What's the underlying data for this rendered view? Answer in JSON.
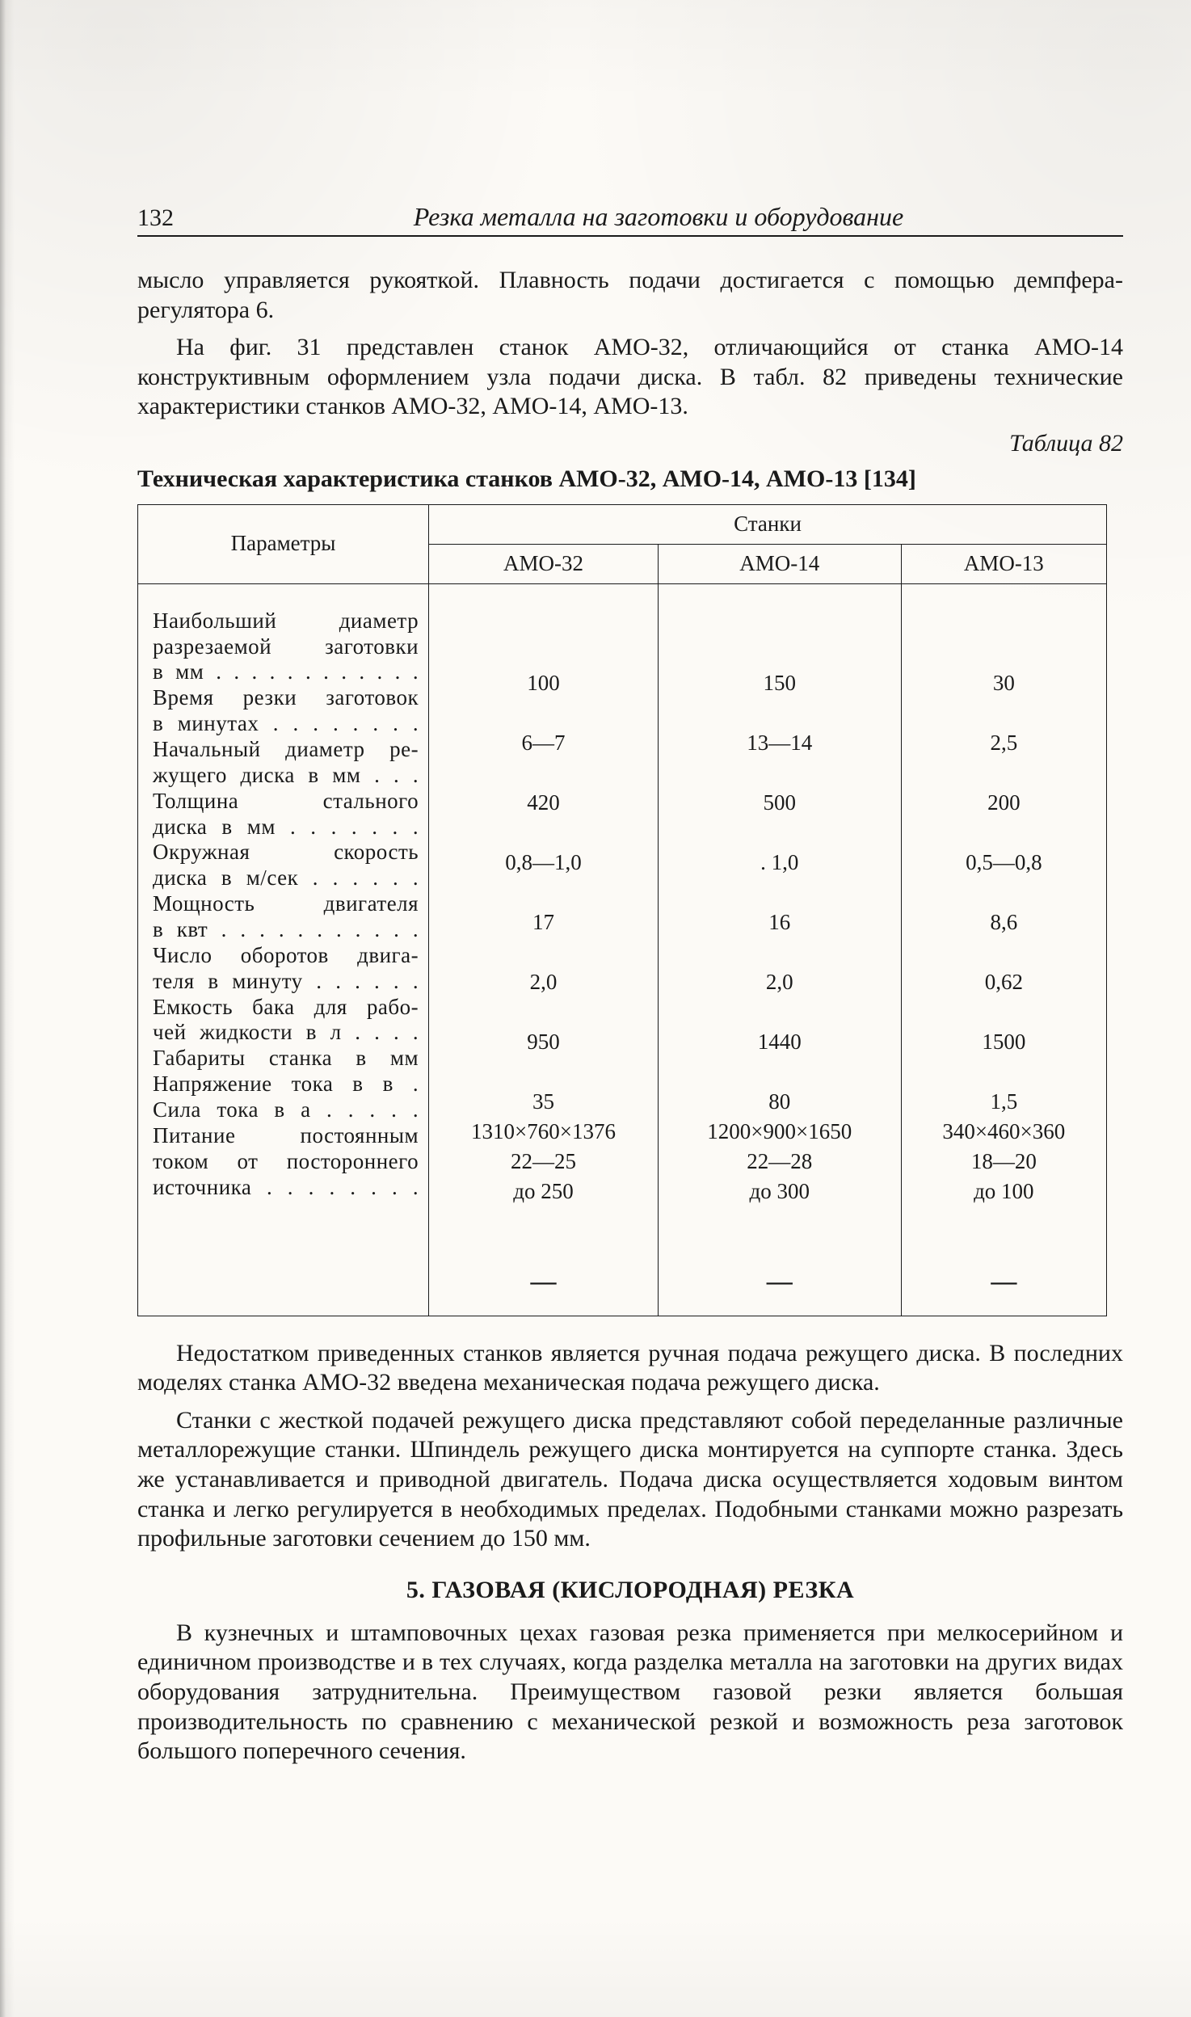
{
  "page_number": "132",
  "running_title": "Резка металла на заготовки и оборудование",
  "para1": "мысло управляется рукояткой. Плавность подачи достигается с по­мощью демпфера-регулятора 6.",
  "para2_a": "На фиг. 31 представлен станок АМО-32, отличающийся от станка АМО-14 конструктивным оформлением узла подачи диска. В табл. 82 приведены технические характеристики станков АМО-32, АМО-14, АМО-13.",
  "table_label": "Таблица  82",
  "table_title": "Техническая характеристика станков АМО-32, АМО-14, АМО-13 [134]",
  "table": {
    "header_params": "Параметры",
    "header_group": "Станки",
    "columns": [
      "АМО-32",
      "АМО-14",
      "АМО-13"
    ],
    "rows": [
      {
        "label_lines": [
          "Наибольший диаметр",
          "разрезаемой заготовки",
          "в мм . . . . . . . . . . . ."
        ],
        "v": [
          "100",
          "150",
          "30"
        ]
      },
      {
        "label_lines": [
          "Время резки заготовок",
          "в минутах . . . . . . . ."
        ],
        "v": [
          "6—7",
          "13—14",
          "2,5"
        ]
      },
      {
        "label_lines": [
          "Начальный диаметр ре-",
          "жущего диска в мм . . ."
        ],
        "v": [
          "420",
          "500",
          "200"
        ]
      },
      {
        "label_lines": [
          "Толщина стального",
          "диска в мм . . . . . . ."
        ],
        "v": [
          "0,8—1,0",
          ". 1,0",
          "0,5—0,8"
        ]
      },
      {
        "label_lines": [
          "Окружная скорость",
          "диска в м/сек . . . . . ."
        ],
        "v": [
          "17",
          "16",
          "8,6"
        ]
      },
      {
        "label_lines": [
          "Мощность двигателя",
          "в квт . . . . . . . . . . ."
        ],
        "v": [
          "2,0",
          "2,0",
          "0,62"
        ]
      },
      {
        "label_lines": [
          "Число оборотов двига-",
          "теля в минуту . . . . . ."
        ],
        "v": [
          "950",
          "1440",
          "1500"
        ]
      },
      {
        "label_lines": [
          "Емкость бака для рабо-",
          "чей жидкости в л . . . ."
        ],
        "v": [
          "35",
          "80",
          "1,5"
        ]
      },
      {
        "label_lines": [
          "Габариты станка в мм"
        ],
        "v": [
          "1310×760×1376",
          "1200×900×1650",
          "340×460×360"
        ]
      },
      {
        "label_lines": [
          "Напряжение тока в в ."
        ],
        "v": [
          "22—25",
          "22—28",
          "18—20"
        ]
      },
      {
        "label_lines": [
          "Сила тока в а . . . . ."
        ],
        "v": [
          "до 250",
          "до 300",
          "до 100"
        ]
      },
      {
        "label_lines": [
          "Питание постоянным",
          "током от постороннего",
          "источника . . . . . . . ."
        ],
        "v": [
          "—",
          "—",
          "—"
        ]
      }
    ]
  },
  "para3": "Недостатком приведенных станков является ручная подача ре­жущего диска. В последних моделях станка АМО-32 введена меха­ническая подача режущего диска.",
  "para4": "Станки с жесткой подачей режущего диска представляют собой переделанные различные металлорежущие станки. Шпиндель режу­щего диска монтируется на суппорте станка. Здесь же устанавли­вается и приводной двигатель. Подача диска осуществляется ходо­вым винтом станка и легко регулируется в необходимых пределах. Подобными станками можно разрезать профильные заготовки се­чением до 150 мм.",
  "section_heading": "5. ГАЗОВАЯ (КИСЛОРОДНАЯ) РЕЗКА",
  "para5": "В кузнечных и штамповочных цехах газовая резка применяется при мелкосерийном и единичном производстве и в тех случаях, ко­гда разделка металла на заготовки на других видах оборудования затруднительна. Преимуществом газовой резки является большая производительность по сравнению с механической резкой и возмож­ность реза заготовок большого поперечного сечения."
}
